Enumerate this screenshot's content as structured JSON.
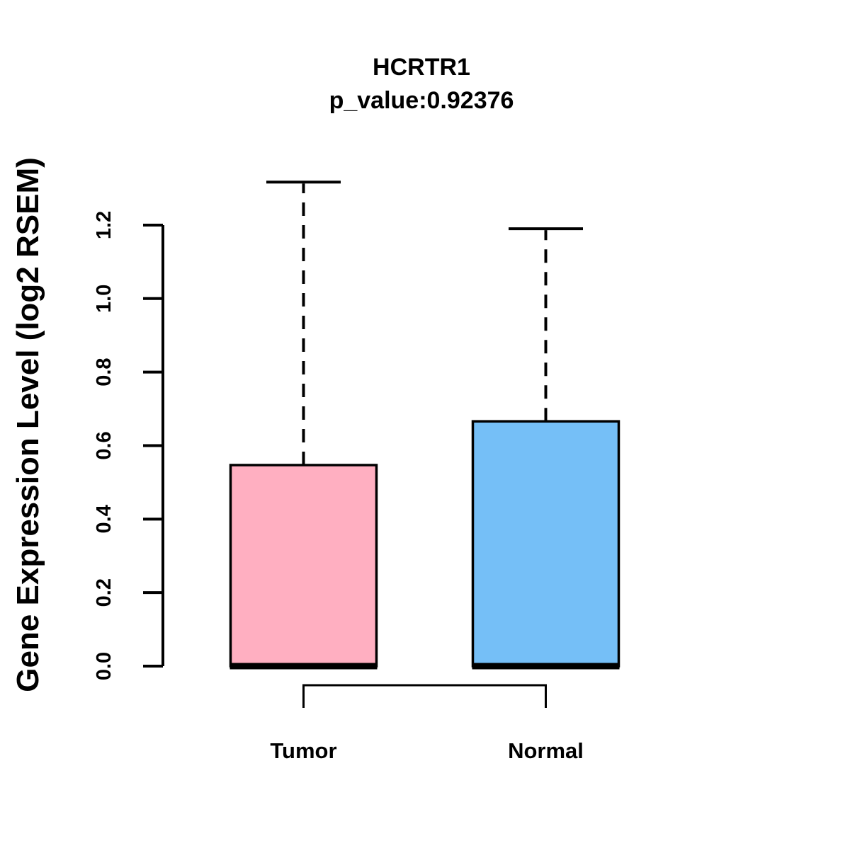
{
  "chart_data": {
    "type": "boxplot",
    "title": "HCRTR1",
    "subtitle": "p_value:0.92376",
    "ylabel": "Gene Expression Level (log2 RSEM)",
    "xlabel": "",
    "ylim": [
      0.0,
      1.32
    ],
    "yticks": [
      0.0,
      0.2,
      0.4,
      0.6,
      0.8,
      1.0,
      1.2
    ],
    "ytick_labels": [
      "0.0",
      "0.2",
      "0.4",
      "0.6",
      "0.8",
      "1.0",
      "1.2"
    ],
    "grid": false,
    "legend": "none",
    "categories": [
      "Tumor",
      "Normal"
    ],
    "series": [
      {
        "name": "Tumor",
        "box_color": "#FFAFC1",
        "border_color": "#000000",
        "whisker_low": 0.0,
        "q1": 0.0,
        "median": 0.0,
        "q3": 0.547,
        "whisker_high": 1.317
      },
      {
        "name": "Normal",
        "box_color": "#75BFF7",
        "border_color": "#000000",
        "whisker_low": 0.0,
        "q1": 0.0,
        "median": 0.0,
        "q3": 0.666,
        "whisker_high": 1.19
      }
    ],
    "comparison_bracket": {
      "connects": [
        "Tumor",
        "Normal"
      ]
    }
  }
}
